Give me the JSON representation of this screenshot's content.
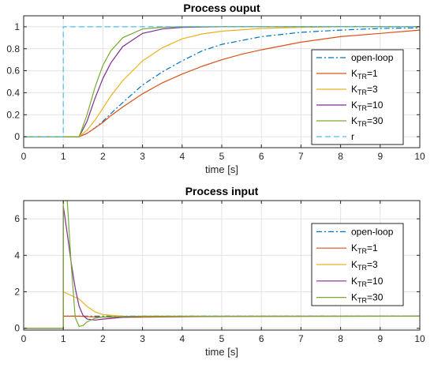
{
  "chart_data": [
    {
      "type": "line",
      "title": "Process ouput",
      "xlabel": "time [s]",
      "ylabel": "",
      "xlim": [
        0,
        10
      ],
      "ylim": [
        -0.1,
        1.1
      ],
      "xticks": [
        "0",
        "1",
        "2",
        "3",
        "4",
        "5",
        "6",
        "7",
        "8",
        "9",
        "10"
      ],
      "yticks": [
        "0",
        "0.2",
        "0.4",
        "0.6",
        "0.8",
        "1"
      ],
      "grid": true,
      "legend_position": "right",
      "series": [
        {
          "name": "open-loop",
          "name_parts": [
            "open-loop",
            "",
            ""
          ],
          "color": "#0072BD",
          "dash": "dashdot",
          "x": [
            0,
            1.4,
            1.6,
            1.8,
            2,
            2.2,
            2.5,
            3,
            3.5,
            4,
            4.5,
            5,
            6,
            7,
            8,
            9,
            10
          ],
          "y": [
            0,
            0,
            0.03,
            0.08,
            0.14,
            0.21,
            0.31,
            0.47,
            0.59,
            0.69,
            0.78,
            0.84,
            0.91,
            0.95,
            0.97,
            0.985,
            0.99
          ]
        },
        {
          "name": "KTR=1",
          "name_parts": [
            "K",
            "TR",
            "=1"
          ],
          "color": "#D95319",
          "dash": "solid",
          "x": [
            0,
            1.4,
            1.6,
            1.8,
            2,
            2.2,
            2.5,
            3,
            3.5,
            4,
            4.5,
            5,
            5.5,
            6,
            7,
            8,
            9,
            10
          ],
          "y": [
            0,
            0,
            0.03,
            0.08,
            0.13,
            0.19,
            0.27,
            0.39,
            0.49,
            0.57,
            0.64,
            0.7,
            0.75,
            0.79,
            0.86,
            0.91,
            0.94,
            0.97
          ]
        },
        {
          "name": "KTR=3",
          "name_parts": [
            "K",
            "TR",
            "=3"
          ],
          "color": "#EDB120",
          "dash": "solid",
          "x": [
            0,
            1.4,
            1.6,
            1.8,
            2,
            2.2,
            2.5,
            3,
            3.5,
            4,
            4.5,
            5,
            6,
            7,
            8,
            10
          ],
          "y": [
            0,
            0,
            0.06,
            0.15,
            0.26,
            0.37,
            0.51,
            0.69,
            0.81,
            0.89,
            0.935,
            0.96,
            0.985,
            0.995,
            1,
            1
          ]
        },
        {
          "name": "KTR=10",
          "name_parts": [
            "K",
            "TR",
            "=10"
          ],
          "color": "#7E2F8E",
          "dash": "solid",
          "x": [
            0,
            1.4,
            1.6,
            1.8,
            2,
            2.2,
            2.5,
            3,
            3.5,
            4,
            5,
            10
          ],
          "y": [
            0,
            0,
            0.14,
            0.35,
            0.53,
            0.67,
            0.82,
            0.94,
            0.98,
            0.995,
            1,
            1
          ]
        },
        {
          "name": "KTR=30",
          "name_parts": [
            "K",
            "TR",
            "=30"
          ],
          "color": "#77AC30",
          "dash": "solid",
          "x": [
            0,
            1.4,
            1.6,
            1.8,
            2,
            2.2,
            2.5,
            3,
            3.5,
            4,
            10
          ],
          "y": [
            0,
            0,
            0.2,
            0.45,
            0.65,
            0.78,
            0.9,
            0.98,
            0.995,
            1,
            1
          ]
        },
        {
          "name": "r",
          "name_parts": [
            "r",
            "",
            ""
          ],
          "color": "#4DBEEE",
          "dash": "dashed",
          "x": [
            0,
            1,
            1,
            10
          ],
          "y": [
            0,
            0,
            1,
            1
          ]
        }
      ]
    },
    {
      "type": "line",
      "title": "Process input",
      "xlabel": "time [s]",
      "ylabel": "",
      "xlim": [
        0,
        10
      ],
      "ylim": [
        -0.1,
        7
      ],
      "xticks": [
        "0",
        "1",
        "2",
        "3",
        "4",
        "5",
        "6",
        "7",
        "8",
        "9",
        "10"
      ],
      "yticks": [
        "0",
        "2",
        "4",
        "6"
      ],
      "grid": true,
      "legend_position": "right",
      "series": [
        {
          "name": "open-loop",
          "name_parts": [
            "open-loop",
            "",
            ""
          ],
          "color": "#0072BD",
          "dash": "dashdot",
          "x": [
            0,
            1,
            1,
            10
          ],
          "y": [
            0,
            0,
            0.66,
            0.66
          ]
        },
        {
          "name": "KTR=1",
          "name_parts": [
            "K",
            "TR",
            "=1"
          ],
          "color": "#D95319",
          "dash": "solid",
          "x": [
            0,
            1,
            1,
            1.4,
            1.6,
            1.8,
            2,
            2.5,
            3,
            4,
            5,
            10
          ],
          "y": [
            0,
            0,
            0.66,
            0.66,
            0.64,
            0.62,
            0.61,
            0.6,
            0.61,
            0.63,
            0.65,
            0.66
          ]
        },
        {
          "name": "KTR=3",
          "name_parts": [
            "K",
            "TR",
            "=3"
          ],
          "color": "#EDB120",
          "dash": "solid",
          "x": [
            0,
            1,
            1,
            1.4,
            1.6,
            1.8,
            2,
            2.5,
            3,
            4,
            10
          ],
          "y": [
            0,
            0,
            2.0,
            1.6,
            1.2,
            0.9,
            0.75,
            0.66,
            0.64,
            0.65,
            0.66
          ]
        },
        {
          "name": "KTR=10",
          "name_parts": [
            "K",
            "TR",
            "=10"
          ],
          "color": "#7E2F8E",
          "dash": "solid",
          "x": [
            0,
            1,
            1,
            1.1,
            1.2,
            1.3,
            1.4,
            1.5,
            1.6,
            1.8,
            2,
            2.5,
            3,
            10
          ],
          "y": [
            0,
            0,
            6.7,
            5.2,
            3.6,
            2.2,
            1.2,
            0.7,
            0.5,
            0.45,
            0.5,
            0.6,
            0.65,
            0.66
          ]
        },
        {
          "name": "KTR=30",
          "name_parts": [
            "K",
            "TR",
            "=30"
          ],
          "color": "#77AC30",
          "dash": "solid",
          "x": [
            0,
            1,
            1,
            1.1,
            1.2,
            1.3,
            1.4,
            1.5,
            1.6,
            1.8,
            2,
            2.5,
            3,
            10
          ],
          "y": [
            0,
            0,
            7,
            7,
            3.5,
            0.6,
            0.1,
            0.15,
            0.35,
            0.55,
            0.62,
            0.65,
            0.66,
            0.66
          ]
        }
      ]
    }
  ]
}
